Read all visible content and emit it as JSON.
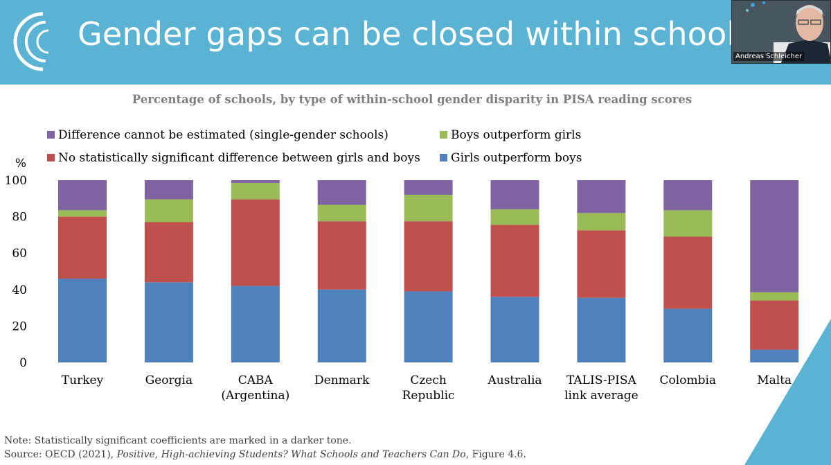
{
  "slide": {
    "title": "Gender gaps can be closed within schools",
    "speaker_name": "Andreas Schleicher",
    "colors": {
      "header_bg": "#5ab3d3",
      "title_text": "#ffffff"
    }
  },
  "chart_data": {
    "type": "bar",
    "stacked": true,
    "title": "Percentage of schools, by type of within-school gender disparity in PISA reading scores",
    "ylabel": "%",
    "xlabel": "",
    "ylim": [
      0,
      100
    ],
    "yticks": [
      0,
      20,
      40,
      60,
      80,
      100
    ],
    "grid": false,
    "legend_position": "top",
    "categories": [
      "Turkey",
      "Georgia",
      "CABA\n(Argentina)",
      "Denmark",
      "Czech\nRepublic",
      "Australia",
      "TALIS-PISA\nlink average",
      "Colombia",
      "Malta"
    ],
    "series": [
      {
        "name": "Girls outperform boys",
        "color": "#4f81bd",
        "values": [
          46,
          44,
          42,
          40,
          39,
          36,
          35.5,
          29.5,
          7
        ]
      },
      {
        "name": "No statistically significant difference between girls and boys",
        "color": "#c0504d",
        "values": [
          34,
          33,
          47.5,
          37.5,
          38.5,
          39.5,
          37,
          39.5,
          27
        ]
      },
      {
        "name": "Boys outperform girls",
        "color": "#9bbb59",
        "values": [
          3.5,
          12.5,
          9,
          9,
          14.5,
          8.5,
          9.5,
          14.5,
          4.5
        ]
      },
      {
        "name": "Difference cannot be estimated (single-gender schools)",
        "color": "#8064a2",
        "values": [
          16.5,
          10.5,
          1.5,
          13.5,
          8,
          16,
          18,
          16.5,
          61.5
        ]
      }
    ],
    "legend_order": [
      "Difference cannot be estimated (single-gender schools)",
      "Boys outperform girls",
      "No statistically significant difference between girls and boys",
      "Girls outperform boys"
    ]
  },
  "footer": {
    "note": "Note: Statistically significant coefficients are marked in a darker tone.",
    "source_prefix": "Source: OECD (2021), ",
    "source_title": "Positive, High-achieving Students? What Schools and Teachers Can Do",
    "source_suffix": ", Figure 4.6."
  }
}
